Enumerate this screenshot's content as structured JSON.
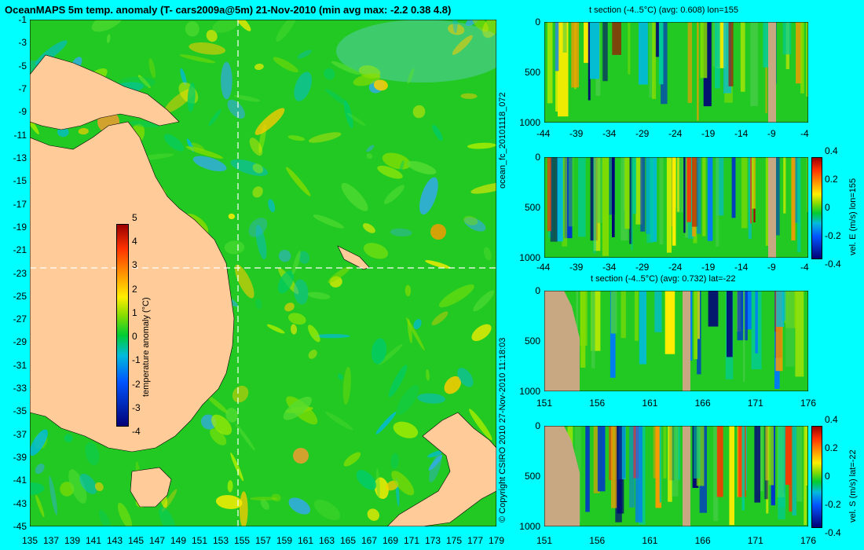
{
  "chart_data": [
    {
      "type": "heatmap",
      "title": "OceanMAPS 5m temp. anomaly (T- cars2009a@5m) 21-Nov-2010 (min avg max: -2.2 0.38 4.8)",
      "x_ticks": [
        "135",
        "137",
        "139",
        "141",
        "143",
        "145",
        "147",
        "149",
        "151",
        "153",
        "155",
        "157",
        "159",
        "161",
        "163",
        "165",
        "167",
        "169",
        "171",
        "173",
        "175",
        "177",
        "179"
      ],
      "y_ticks": [
        "-1",
        "-3",
        "-5",
        "-7",
        "-9",
        "-11",
        "-13",
        "-15",
        "-17",
        "-19",
        "-21",
        "-23",
        "-25",
        "-27",
        "-29",
        "-31",
        "-33",
        "-35",
        "-37",
        "-39",
        "-41",
        "-43",
        "-45"
      ],
      "colorbar": {
        "label": "temperature anomaly (°C)",
        "ticks": [
          "5",
          "4",
          "3",
          "2",
          "1",
          "0",
          "-1",
          "-2",
          "-3",
          "-4"
        ],
        "range": [
          -4,
          5
        ]
      },
      "crosshair": {
        "lon": 155,
        "lat": -22
      },
      "colors": {
        "land": "#ffcc99",
        "base_water": "#22c922"
      }
    },
    {
      "type": "heatmap",
      "title": "t section (-4..5°C) (avg: 0.608) lon=155",
      "x_ticks": [
        "-44",
        "-39",
        "-34",
        "-29",
        "-24",
        "-19",
        "-14",
        "-9",
        "-4"
      ],
      "y_ticks": [
        "0",
        "500",
        "1000"
      ]
    },
    {
      "type": "heatmap",
      "title": "",
      "x_ticks": [
        "-44",
        "-39",
        "-34",
        "-29",
        "-24",
        "-19",
        "-14",
        "-9",
        "-4"
      ],
      "y_ticks": [
        "0",
        "500",
        "1000"
      ],
      "colorbar": {
        "label": "vel. E (m/s) lon=155",
        "ticks": [
          "0.4",
          "0.2",
          "0",
          "-0.2",
          "-0.4"
        ]
      }
    },
    {
      "type": "heatmap",
      "title": "t section (-4..5°C) (avg: 0.732) lat=-22",
      "x_ticks": [
        "151",
        "156",
        "161",
        "166",
        "171",
        "176"
      ],
      "y_ticks": [
        "0",
        "500",
        "1000"
      ]
    },
    {
      "type": "heatmap",
      "title": "",
      "x_ticks": [
        "151",
        "156",
        "161",
        "166",
        "171",
        "176"
      ],
      "y_ticks": [
        "0",
        "500",
        "1000"
      ],
      "colorbar": {
        "label": "vel. S (m/s) lat=-22",
        "ticks": [
          "0.4",
          "0.2",
          "0",
          "-0.2",
          "-0.4"
        ]
      }
    }
  ],
  "side_labels": {
    "run": "ocean_fc_20101118_072",
    "copyright": "© Copyright CSIRO 2010   27-Nov-2010 11:18:03"
  }
}
